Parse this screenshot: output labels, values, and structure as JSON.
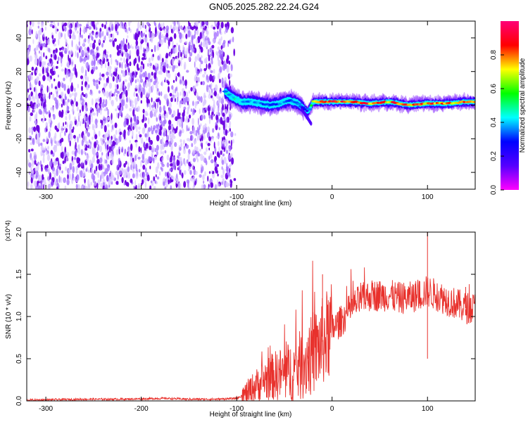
{
  "title": "GN05.2025.282.22.24.G24",
  "colors": {
    "spectrogram_low": "#a26bff",
    "spectrogram_dark": "#6a00e0",
    "snr_line": "#e8312c"
  },
  "chart_data": [
    {
      "type": "heatmap",
      "xlabel": "Height of straight line (km)",
      "ylabel": "Frequency (Hz)",
      "xlim": [
        -320,
        150
      ],
      "ylim": [
        -50,
        50
      ],
      "x_ticks": [
        -300,
        -200,
        -100,
        0,
        100
      ],
      "y_ticks": [
        -40,
        -20,
        0,
        20,
        40
      ],
      "colorbar": {
        "label": "Normalized spectral amplitude",
        "range": [
          0,
          1
        ],
        "ticks": [
          "0.0",
          "0.2",
          "0.4",
          "0.6",
          "0.8"
        ],
        "colormap": [
          "#ff00ff",
          "#5500ff",
          "#0000ff",
          "#00ffff",
          "#00ff00",
          "#ffff00",
          "#ff0000",
          "#ff0077"
        ]
      },
      "regions": [
        {
          "name": "noise",
          "x_range": [
            -320,
            -105
          ],
          "f_range": [
            -50,
            50
          ],
          "amplitude": 0.1
        },
        {
          "name": "signal",
          "x_range": [
            -112,
            150
          ],
          "amplitude": 0.5
        }
      ],
      "signal_track": {
        "x": [
          -112,
          -105,
          -95,
          -85,
          -75,
          -65,
          -55,
          -45,
          -35,
          -30,
          -25,
          -20,
          -10,
          0,
          20,
          40,
          60,
          80,
          100,
          120,
          140,
          150
        ],
        "f": [
          8,
          5,
          2,
          2,
          1,
          0,
          1,
          3,
          1,
          -2,
          -4,
          2,
          2,
          2,
          2,
          1,
          2,
          0,
          1,
          1,
          2,
          2
        ],
        "peak_amplitude": [
          0.45,
          0.5,
          0.45,
          0.4,
          0.4,
          0.35,
          0.4,
          0.4,
          0.35,
          0.3,
          0.3,
          0.7,
          0.85,
          0.9,
          0.9,
          0.9,
          0.85,
          0.9,
          0.9,
          0.85,
          0.85,
          0.8
        ]
      }
    },
    {
      "type": "line",
      "xlabel": "Height of straight line (km)",
      "ylabel": "SNR (10 * v/v)",
      "y_multiplier": "(x10^4)",
      "xlim": [
        -320,
        150
      ],
      "ylim": [
        0,
        2.0
      ],
      "x_ticks": [
        -300,
        -200,
        -100,
        0,
        100
      ],
      "y_ticks": [
        "0.0",
        "0.5",
        "1.0",
        "1.5",
        "2.0"
      ],
      "series": [
        {
          "x": [
            -320,
            -260,
            -220,
            -175,
            -150,
            -120,
            -100,
            -90,
            -80,
            -70,
            -60,
            -50,
            -40,
            -30,
            -20,
            -10,
            0,
            10,
            20,
            30,
            40,
            50,
            60,
            70,
            80,
            90,
            100,
            110,
            120,
            130,
            140,
            150
          ],
          "y": [
            0.01,
            0.02,
            0.02,
            0.03,
            0.02,
            0.02,
            0.03,
            0.08,
            0.18,
            0.25,
            0.3,
            0.32,
            0.35,
            0.45,
            0.55,
            0.7,
            0.85,
            0.95,
            1.1,
            1.2,
            1.25,
            1.25,
            1.25,
            1.22,
            1.22,
            1.25,
            1.3,
            1.25,
            1.2,
            1.15,
            1.1,
            1.1
          ],
          "spikes": [
            {
              "x": -100,
              "y": 0.06
            },
            {
              "x": -80,
              "y": 0.3
            },
            {
              "x": -70,
              "y": 0.42
            },
            {
              "x": -62,
              "y": 0.5
            },
            {
              "x": -40,
              "y": 0.5
            },
            {
              "x": -25,
              "y": 0.75
            },
            {
              "x": -20,
              "y": 1.05
            },
            {
              "x": -10,
              "y": 1.5
            },
            {
              "x": 30,
              "y": 1.4
            },
            {
              "x": 100,
              "y": 2.0
            },
            {
              "x": 100,
              "y": 0.5
            },
            {
              "x": 140,
              "y": 1.35
            }
          ]
        }
      ]
    }
  ]
}
